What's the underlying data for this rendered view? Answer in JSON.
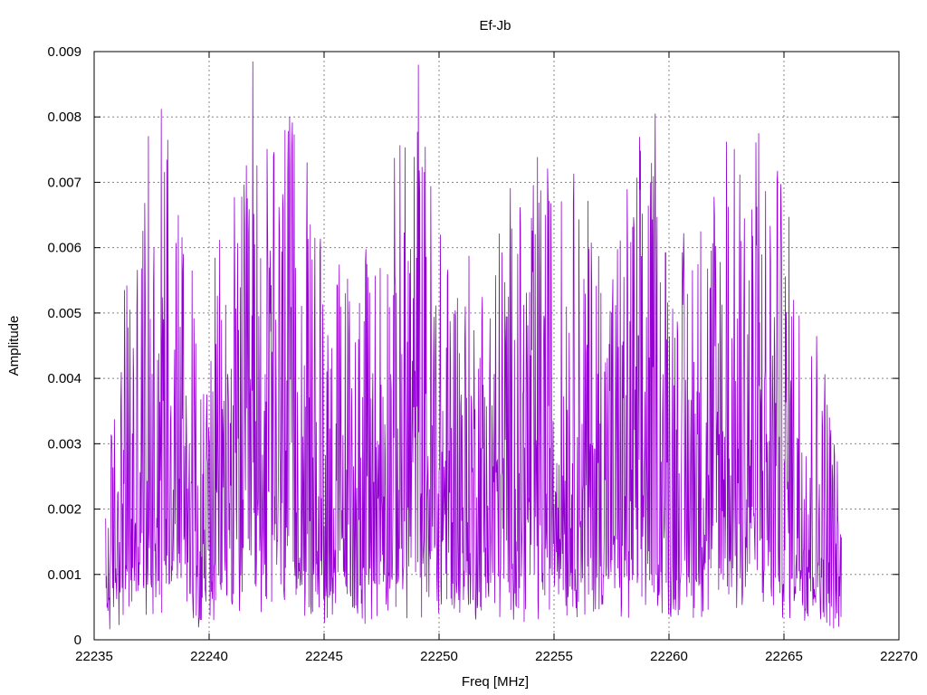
{
  "chart_data": {
    "type": "line",
    "title": "Ef-Jb",
    "xlabel": "Freq [MHz]",
    "ylabel": "Amplitude",
    "xlim": [
      22235,
      22270
    ],
    "ylim": [
      0,
      0.009
    ],
    "xticks": [
      "22235",
      "22240",
      "22245",
      "22250",
      "22255",
      "22260",
      "22265",
      "22270"
    ],
    "yticks": [
      "0",
      "0.001",
      "0.002",
      "0.003",
      "0.004",
      "0.005",
      "0.006",
      "0.007",
      "0.008",
      "0.009"
    ],
    "grid": true,
    "series": [
      {
        "color": "#9400D3",
        "x_range": [
          22235.5,
          22267.5
        ],
        "peaks": [
          {
            "x": 22238.2,
            "y": 0.00765
          },
          {
            "x": 22241.9,
            "y": 0.00885
          },
          {
            "x": 22243.3,
            "y": 0.0078
          },
          {
            "x": 22249.1,
            "y": 0.0088
          },
          {
            "x": 22259.4,
            "y": 0.00805
          },
          {
            "x": 22262.5,
            "y": 0.00762
          },
          {
            "x": 22263.9,
            "y": 0.00775
          },
          {
            "x": 22264.7,
            "y": 0.00702
          }
        ],
        "envelope": [
          {
            "x": 22235.5,
            "y": 0.0015
          },
          {
            "x": 22236.0,
            "y": 0.0035
          },
          {
            "x": 22237.0,
            "y": 0.005
          },
          {
            "x": 22238.0,
            "y": 0.0065
          },
          {
            "x": 22239.0,
            "y": 0.0055
          },
          {
            "x": 22239.6,
            "y": 0.003
          },
          {
            "x": 22240.5,
            "y": 0.0045
          },
          {
            "x": 22242.0,
            "y": 0.0055
          },
          {
            "x": 22243.5,
            "y": 0.0058
          },
          {
            "x": 22245.0,
            "y": 0.0045
          },
          {
            "x": 22246.5,
            "y": 0.0042
          },
          {
            "x": 22248.0,
            "y": 0.0052
          },
          {
            "x": 22249.0,
            "y": 0.0062
          },
          {
            "x": 22250.0,
            "y": 0.0048
          },
          {
            "x": 22251.5,
            "y": 0.0042
          },
          {
            "x": 22253.0,
            "y": 0.005
          },
          {
            "x": 22254.5,
            "y": 0.0055
          },
          {
            "x": 22256.0,
            "y": 0.0052
          },
          {
            "x": 22257.5,
            "y": 0.0045
          },
          {
            "x": 22259.0,
            "y": 0.0058
          },
          {
            "x": 22260.5,
            "y": 0.0045
          },
          {
            "x": 22262.0,
            "y": 0.0055
          },
          {
            "x": 22263.5,
            "y": 0.006
          },
          {
            "x": 22265.0,
            "y": 0.005
          },
          {
            "x": 22266.0,
            "y": 0.004
          },
          {
            "x": 22267.0,
            "y": 0.003
          },
          {
            "x": 22267.5,
            "y": 0.0015
          }
        ]
      }
    ]
  }
}
